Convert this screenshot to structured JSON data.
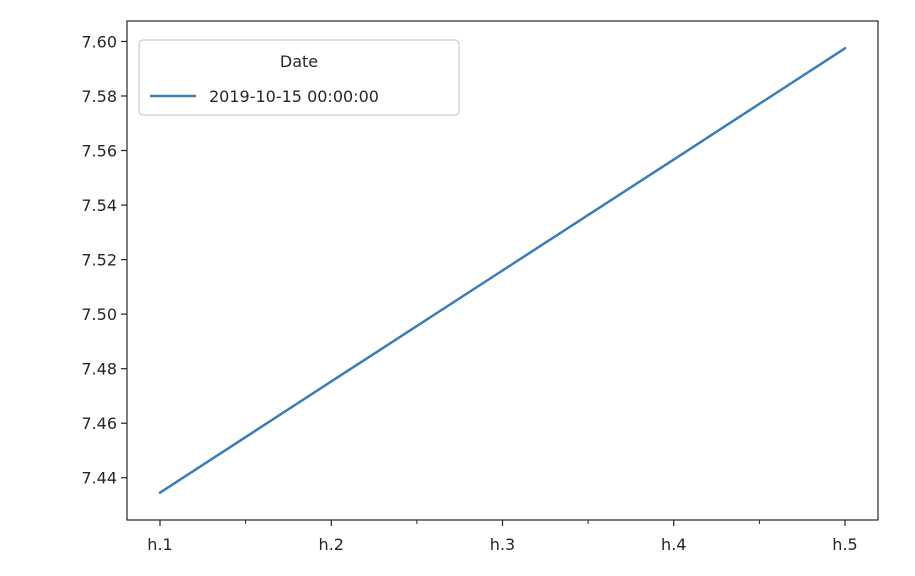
{
  "chart_data": {
    "type": "line",
    "categories": [
      "h.1",
      "h.2",
      "h.3",
      "h.4",
      "h.5"
    ],
    "series": [
      {
        "name": "2019-10-15 00:00:00",
        "color": "#3a7db8",
        "values": [
          7.4345,
          7.4753,
          7.516,
          7.5567,
          7.5975
        ]
      }
    ],
    "title": "",
    "xlabel": "",
    "ylabel": "",
    "ylim": [
      7.4245,
      7.6075
    ],
    "yticks": [
      7.44,
      7.46,
      7.48,
      7.5,
      7.52,
      7.54,
      7.56,
      7.58,
      7.6
    ],
    "ytick_labels": [
      "7.44",
      "7.46",
      "7.48",
      "7.50",
      "7.52",
      "7.54",
      "7.56",
      "7.58",
      "7.60"
    ],
    "x_minor_ticks": true,
    "grid": false,
    "legend": {
      "title": "Date",
      "position": "top-left"
    }
  }
}
